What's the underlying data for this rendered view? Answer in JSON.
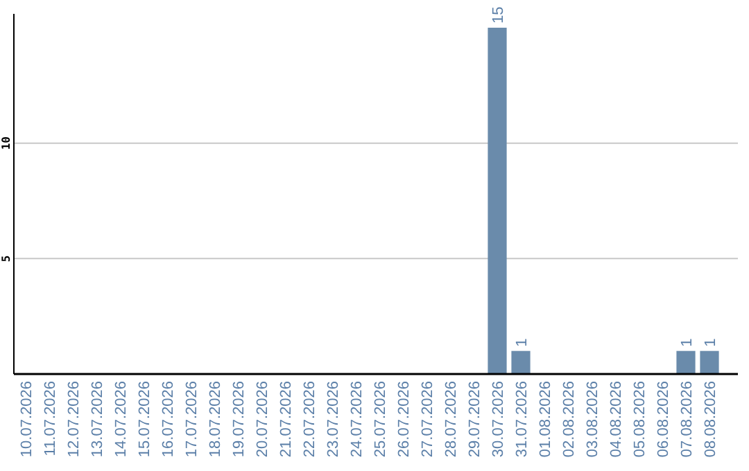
{
  "chart_data": {
    "type": "bar",
    "categories": [
      "10.07.2026",
      "11.07.2026",
      "12.07.2026",
      "13.07.2026",
      "14.07.2026",
      "15.07.2026",
      "16.07.2026",
      "17.07.2026",
      "18.07.2026",
      "19.07.2026",
      "20.07.2026",
      "21.07.2026",
      "22.07.2026",
      "23.07.2026",
      "24.07.2026",
      "25.07.2026",
      "26.07.2026",
      "27.07.2026",
      "28.07.2026",
      "29.07.2026",
      "30.07.2026",
      "31.07.2026",
      "01.08.2026",
      "02.08.2026",
      "03.08.2026",
      "04.08.2026",
      "05.08.2026",
      "06.08.2026",
      "07.08.2026",
      "08.08.2026"
    ],
    "values": [
      0,
      0,
      0,
      0,
      0,
      0,
      0,
      0,
      0,
      0,
      0,
      0,
      0,
      0,
      0,
      0,
      0,
      0,
      0,
      0,
      15,
      1,
      0,
      0,
      0,
      0,
      0,
      0,
      1,
      1
    ],
    "value_labels": [
      null,
      null,
      null,
      null,
      null,
      null,
      null,
      null,
      null,
      null,
      null,
      null,
      null,
      null,
      null,
      null,
      null,
      null,
      null,
      null,
      "15",
      "1",
      null,
      null,
      null,
      null,
      null,
      null,
      "1",
      "1"
    ],
    "color": "#6a8bab",
    "ylim": [
      0,
      15.6
    ],
    "yticks": [
      5,
      10
    ],
    "grid": "y"
  }
}
